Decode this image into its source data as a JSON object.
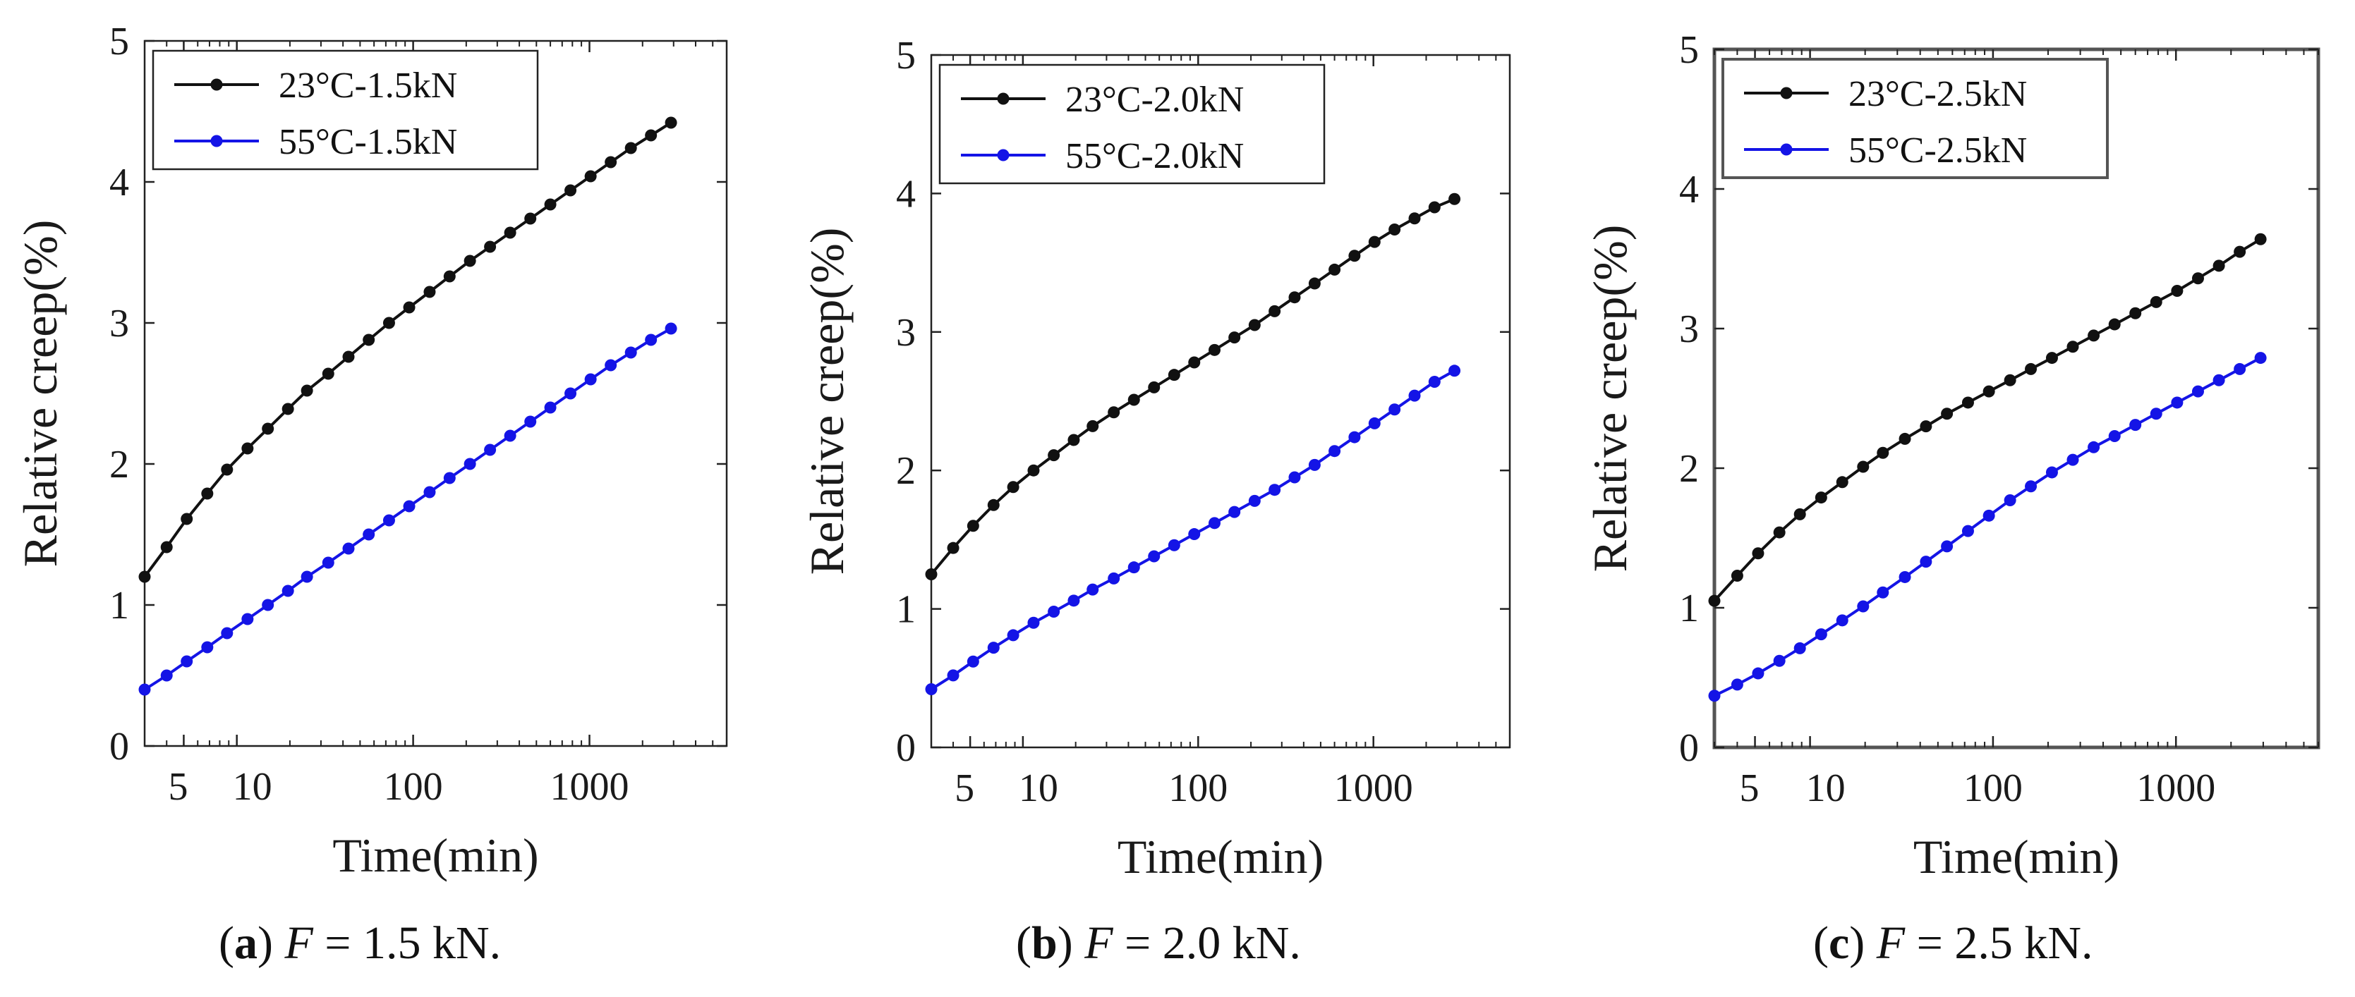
{
  "figure": {
    "colors": {
      "series1": "#111111",
      "series2": "#1414e6",
      "axis": "#222222"
    }
  },
  "chart_data": [
    {
      "type": "line",
      "xscale": "log",
      "xlim": [
        3,
        6000
      ],
      "ylim": [
        0,
        5
      ],
      "xticks": [
        5,
        10,
        100,
        1000
      ],
      "xtick_labels": [
        "5",
        "10",
        "100",
        "1000"
      ],
      "yticks": [
        0,
        1,
        2,
        3,
        4,
        5
      ],
      "ytick_labels": [
        "0",
        "1",
        "2",
        "3",
        "4",
        "5"
      ],
      "xlabel": "Time(min)",
      "ylabel": "Relative creep(%)",
      "legend_position": "top-left",
      "caption": {
        "letter": "a",
        "var": "F",
        "rest": " = 1.5 kN."
      },
      "series": [
        {
          "name": "23°C-1.5kN",
          "color": "#111111",
          "x": [
            3.0,
            4.0,
            5.2,
            6.8,
            8.8,
            11.5,
            15,
            19.5,
            25,
            33,
            43,
            56,
            73,
            95,
            124,
            161,
            210,
            273,
            355,
            462,
            600,
            780,
            1015,
            1320,
            1717,
            2232,
            2900
          ],
          "y": [
            1.2,
            1.41,
            1.61,
            1.79,
            1.96,
            2.11,
            2.25,
            2.39,
            2.52,
            2.64,
            2.76,
            2.88,
            3.0,
            3.11,
            3.22,
            3.33,
            3.44,
            3.54,
            3.64,
            3.74,
            3.84,
            3.94,
            4.04,
            4.14,
            4.24,
            4.33,
            4.42
          ]
        },
        {
          "name": "55°C-1.5kN",
          "color": "#1414e6",
          "x": [
            3.0,
            4.0,
            5.2,
            6.8,
            8.8,
            11.5,
            15,
            19.5,
            25,
            33,
            43,
            56,
            73,
            95,
            124,
            161,
            210,
            273,
            355,
            462,
            600,
            780,
            1015,
            1320,
            1717,
            2232,
            2900
          ],
          "y": [
            0.4,
            0.5,
            0.6,
            0.7,
            0.8,
            0.9,
            1.0,
            1.1,
            1.2,
            1.3,
            1.4,
            1.5,
            1.6,
            1.7,
            1.8,
            1.9,
            2.0,
            2.1,
            2.2,
            2.3,
            2.4,
            2.5,
            2.6,
            2.7,
            2.79,
            2.88,
            2.96
          ]
        }
      ]
    },
    {
      "type": "line",
      "xscale": "log",
      "xlim": [
        3,
        6000
      ],
      "ylim": [
        0,
        5
      ],
      "xticks": [
        5,
        10,
        100,
        1000
      ],
      "xtick_labels": [
        "5",
        "10",
        "100",
        "1000"
      ],
      "yticks": [
        0,
        1,
        2,
        3,
        4,
        5
      ],
      "ytick_labels": [
        "0",
        "1",
        "2",
        "3",
        "4",
        "5"
      ],
      "xlabel": "Time(min)",
      "ylabel": "Relative creep(%)",
      "legend_position": "top-left",
      "caption": {
        "letter": "b",
        "var": "F",
        "rest": " = 2.0 kN."
      },
      "series": [
        {
          "name": "23°C-2.0kN",
          "color": "#111111",
          "x": [
            3.0,
            4.0,
            5.2,
            6.8,
            8.8,
            11.5,
            15,
            19.5,
            25,
            33,
            43,
            56,
            73,
            95,
            124,
            161,
            210,
            273,
            355,
            462,
            600,
            780,
            1015,
            1320,
            1717,
            2232,
            2900
          ],
          "y": [
            1.25,
            1.44,
            1.6,
            1.75,
            1.88,
            2.0,
            2.11,
            2.22,
            2.32,
            2.42,
            2.51,
            2.6,
            2.69,
            2.78,
            2.87,
            2.96,
            3.05,
            3.15,
            3.25,
            3.35,
            3.45,
            3.55,
            3.65,
            3.74,
            3.82,
            3.9,
            3.96
          ]
        },
        {
          "name": "55°C-2.0kN",
          "color": "#1414e6",
          "x": [
            3.0,
            4.0,
            5.2,
            6.8,
            8.8,
            11.5,
            15,
            19.5,
            25,
            33,
            43,
            56,
            73,
            95,
            124,
            161,
            210,
            273,
            355,
            462,
            600,
            780,
            1015,
            1320,
            1717,
            2232,
            2900
          ],
          "y": [
            0.42,
            0.52,
            0.62,
            0.72,
            0.81,
            0.9,
            0.98,
            1.06,
            1.14,
            1.22,
            1.3,
            1.38,
            1.46,
            1.54,
            1.62,
            1.7,
            1.78,
            1.86,
            1.95,
            2.04,
            2.14,
            2.24,
            2.34,
            2.44,
            2.54,
            2.64,
            2.72
          ]
        }
      ]
    },
    {
      "type": "line",
      "xscale": "log",
      "xlim": [
        3,
        6000
      ],
      "ylim": [
        0,
        5
      ],
      "xticks": [
        5,
        10,
        100,
        1000
      ],
      "xtick_labels": [
        "5",
        "10",
        "100",
        "1000"
      ],
      "yticks": [
        0,
        1,
        2,
        3,
        4,
        5
      ],
      "ytick_labels": [
        "0",
        "1",
        "2",
        "3",
        "4",
        "5"
      ],
      "xlabel": "Time(min)",
      "ylabel": "Relative creep(%)",
      "legend_position": "top-left",
      "caption": {
        "letter": "c",
        "var": "F",
        "rest": " = 2.5 kN."
      },
      "series": [
        {
          "name": "23°C-2.5kN",
          "color": "#111111",
          "x": [
            3.0,
            4.0,
            5.2,
            6.8,
            8.8,
            11.5,
            15,
            19.5,
            25,
            33,
            43,
            56,
            73,
            95,
            124,
            161,
            210,
            273,
            355,
            462,
            600,
            780,
            1015,
            1320,
            1717,
            2232,
            2900
          ],
          "y": [
            1.05,
            1.23,
            1.39,
            1.54,
            1.67,
            1.79,
            1.9,
            2.01,
            2.11,
            2.21,
            2.3,
            2.39,
            2.47,
            2.55,
            2.63,
            2.71,
            2.79,
            2.87,
            2.95,
            3.03,
            3.11,
            3.19,
            3.27,
            3.36,
            3.45,
            3.55,
            3.64
          ]
        },
        {
          "name": "55°C-2.5kN",
          "color": "#1414e6",
          "x": [
            3.0,
            4.0,
            5.2,
            6.8,
            8.8,
            11.5,
            15,
            19.5,
            25,
            33,
            43,
            56,
            73,
            95,
            124,
            161,
            210,
            273,
            355,
            462,
            600,
            780,
            1015,
            1320,
            1717,
            2232,
            2900
          ],
          "y": [
            0.37,
            0.45,
            0.53,
            0.62,
            0.71,
            0.81,
            0.91,
            1.01,
            1.11,
            1.22,
            1.33,
            1.44,
            1.55,
            1.66,
            1.77,
            1.87,
            1.97,
            2.06,
            2.15,
            2.23,
            2.31,
            2.39,
            2.47,
            2.55,
            2.63,
            2.71,
            2.79
          ]
        }
      ]
    }
  ]
}
